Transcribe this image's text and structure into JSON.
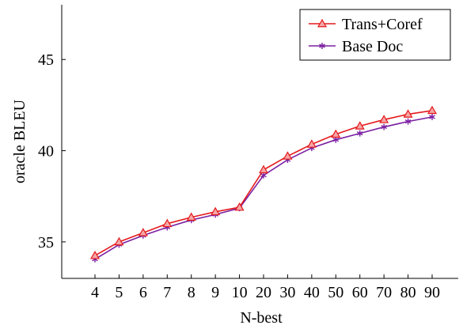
{
  "chart_data": {
    "type": "line",
    "title": "",
    "xlabel": "N-best",
    "ylabel": "oracle BLEU",
    "categories": [
      "4",
      "5",
      "6",
      "7",
      "8",
      "9",
      "10",
      "20",
      "30",
      "40",
      "50",
      "60",
      "70",
      "80",
      "90"
    ],
    "ylim": [
      33.0,
      48.0
    ],
    "yticks": [
      35,
      40,
      45
    ],
    "grid": false,
    "legend_position": "top-right",
    "series": [
      {
        "name": "Trans+Coref",
        "color": "#e41a1c",
        "marker": "triangle",
        "values": [
          34.25,
          35.0,
          35.5,
          36.0,
          36.35,
          36.65,
          36.9,
          38.95,
          39.7,
          40.35,
          40.9,
          41.35,
          41.7,
          42.0,
          42.2
        ]
      },
      {
        "name": "Base Doc",
        "color": "#7b1fa2",
        "marker": "star",
        "values": [
          34.05,
          34.85,
          35.35,
          35.8,
          36.2,
          36.5,
          36.85,
          38.65,
          39.5,
          40.15,
          40.6,
          40.95,
          41.3,
          41.6,
          41.85
        ]
      }
    ]
  }
}
